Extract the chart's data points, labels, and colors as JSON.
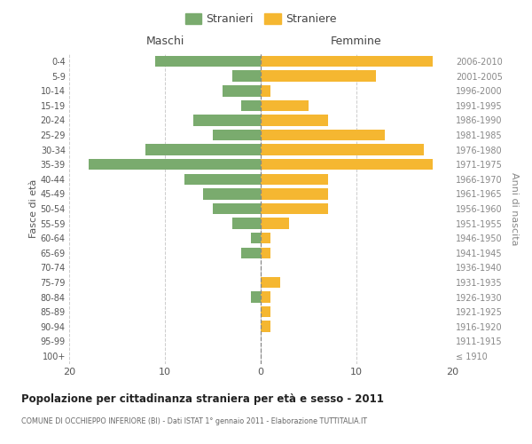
{
  "age_groups": [
    "100+",
    "95-99",
    "90-94",
    "85-89",
    "80-84",
    "75-79",
    "70-74",
    "65-69",
    "60-64",
    "55-59",
    "50-54",
    "45-49",
    "40-44",
    "35-39",
    "30-34",
    "25-29",
    "20-24",
    "15-19",
    "10-14",
    "5-9",
    "0-4"
  ],
  "birth_years": [
    "≤ 1910",
    "1911-1915",
    "1916-1920",
    "1921-1925",
    "1926-1930",
    "1931-1935",
    "1936-1940",
    "1941-1945",
    "1946-1950",
    "1951-1955",
    "1956-1960",
    "1961-1965",
    "1966-1970",
    "1971-1975",
    "1976-1980",
    "1981-1985",
    "1986-1990",
    "1991-1995",
    "1996-2000",
    "2001-2005",
    "2006-2010"
  ],
  "males": [
    0,
    0,
    0,
    0,
    1,
    0,
    0,
    2,
    1,
    3,
    5,
    6,
    8,
    18,
    12,
    5,
    7,
    2,
    4,
    3,
    11
  ],
  "females": [
    0,
    0,
    1,
    1,
    1,
    2,
    0,
    1,
    1,
    3,
    7,
    7,
    7,
    18,
    17,
    13,
    7,
    5,
    1,
    12,
    18
  ],
  "male_color": "#7aab6e",
  "female_color": "#f5b731",
  "background_color": "#ffffff",
  "grid_color": "#cccccc",
  "title": "Popolazione per cittadinanza straniera per età e sesso - 2011",
  "subtitle": "COMUNE DI OCCHIEPPO INFERIORE (BI) - Dati ISTAT 1° gennaio 2011 - Elaborazione TUTTITALIA.IT",
  "xlabel_left": "Maschi",
  "xlabel_right": "Femmine",
  "ylabel_left": "Fasce di età",
  "ylabel_right": "Anni di nascita",
  "legend_male": "Stranieri",
  "legend_female": "Straniere",
  "xlim": 20
}
